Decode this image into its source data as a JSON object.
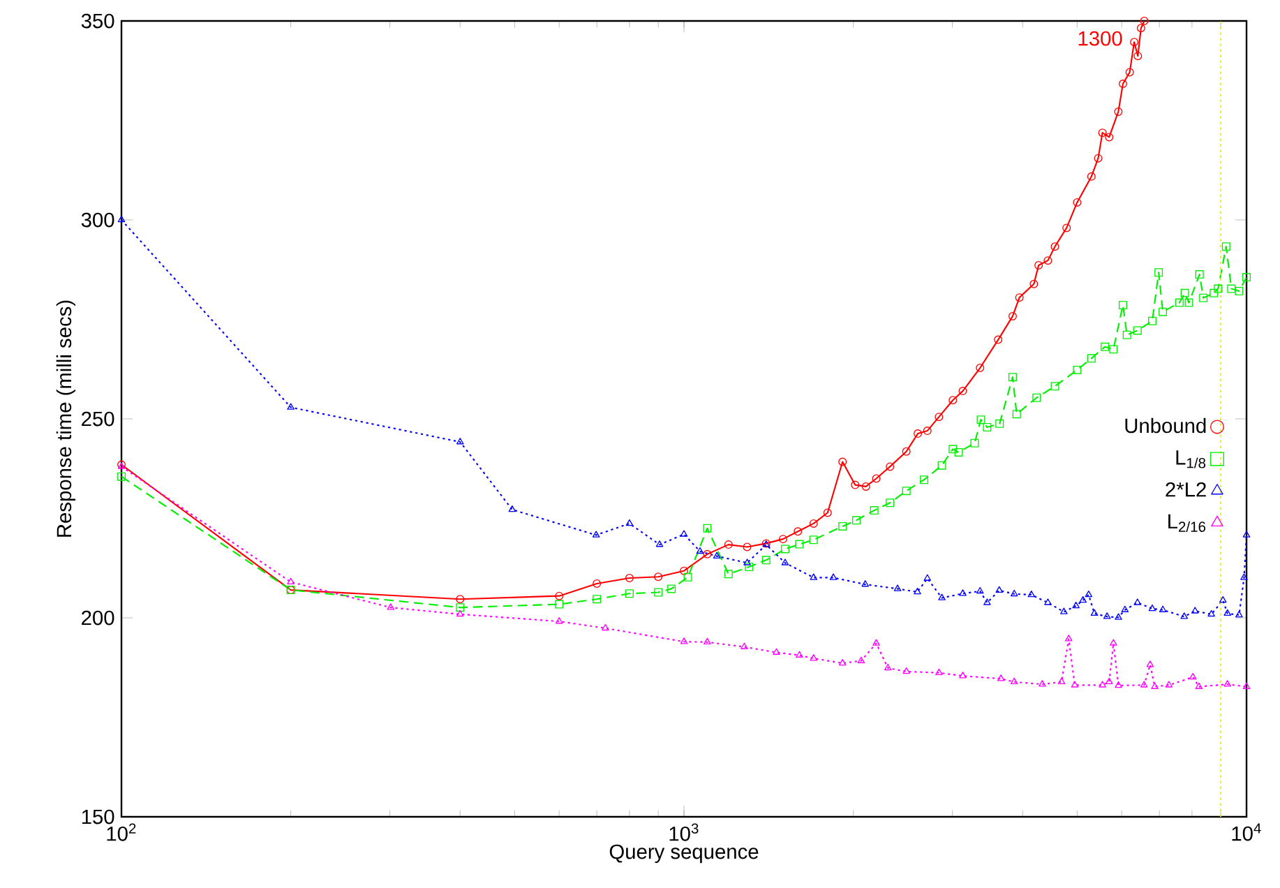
{
  "chart_data": {
    "type": "line",
    "xlabel": "Query sequence",
    "ylabel": "Response time (milli secs)",
    "log": "x",
    "xlim": [
      100,
      10000
    ],
    "ylim": [
      150,
      350
    ],
    "xticks": [
      {
        "value": 100,
        "label": "10$^{2}$"
      },
      {
        "value": 1000,
        "label": "10$^{3}$"
      },
      {
        "value": 10000,
        "label": "10$^{4}$"
      }
    ],
    "yticks": [
      150,
      200,
      250,
      300,
      350
    ],
    "legend": "right",
    "annotations": [
      "1300"
    ],
    "ref_lines": [
      {
        "axis": "x",
        "value": 9000,
        "color": "#e8e830",
        "line_style": "dotted"
      }
    ],
    "series": [
      {
        "name": "Unbound",
        "color": "#ff0000",
        "marker": "circle",
        "line_style": "solid",
        "x": [
          100,
          200,
          400,
          600,
          700,
          800,
          900,
          1000,
          1100,
          1200,
          1295,
          1400,
          1500,
          1594,
          1700,
          1800,
          1914,
          2015,
          2106,
          2197,
          2324,
          2485,
          2604,
          2708,
          2840,
          3006,
          3131,
          3360,
          3619,
          3840,
          3948,
          4188,
          4270,
          4435,
          4565,
          4788,
          5000,
          5300,
          5449,
          5545,
          5700,
          5918,
          6030,
          6200,
          6315,
          6410,
          6494,
          6580
        ],
        "values": [
          238.5,
          207,
          204.7,
          205.5,
          208.6,
          210,
          210.3,
          211.8,
          216,
          218.4,
          217.8,
          218.7,
          219.8,
          221.7,
          223.7,
          226.4,
          239.2,
          233.4,
          233,
          235,
          238,
          241.8,
          246.3,
          247,
          250.5,
          254.7,
          257,
          262.8,
          269.9,
          275.8,
          280.5,
          283.9,
          288.6,
          289.8,
          293.3,
          298,
          304.4,
          310.9,
          315.5,
          321.9,
          320.8,
          327.2,
          334.2,
          337.1,
          344.7,
          341.2,
          348.2,
          350
        ]
      },
      {
        "name": "L$_{1/8}$",
        "color": "#00ee00",
        "marker": "square",
        "line_style": "dashed",
        "x": [
          100,
          200,
          400,
          600,
          700,
          800,
          900,
          950,
          1016,
          1100,
          1200,
          1305,
          1400,
          1513,
          1604,
          1700,
          1914,
          2025,
          2179,
          2324,
          2485,
          2672,
          2874,
          3006,
          3078,
          3286,
          3372,
          3459,
          3640,
          3840,
          3904,
          4235,
          4565,
          5000,
          5300,
          5600,
          5800,
          6030,
          6130,
          6400,
          6800,
          6980,
          7100,
          7600,
          7770,
          7900,
          8250,
          8380,
          8750,
          8900,
          9200,
          9400,
          9700,
          10000
        ],
        "values": [
          235.5,
          207,
          202.6,
          203.4,
          204.7,
          206.1,
          206.4,
          207.3,
          210.2,
          222.5,
          211,
          212.8,
          214.5,
          217.3,
          218.5,
          219.6,
          223,
          224.5,
          227,
          228.9,
          231.9,
          234.7,
          238.3,
          242.4,
          241.6,
          243.9,
          249.8,
          247.9,
          248.8,
          260.5,
          251.2,
          255.3,
          258.2,
          262.3,
          265.2,
          268.1,
          267.5,
          278.6,
          271.1,
          272.2,
          274.6,
          286.8,
          276.9,
          279.2,
          281.6,
          279.2,
          286.3,
          280.4,
          281.6,
          282.7,
          293.3,
          282.7,
          282.1,
          285.6
        ]
      },
      {
        "name": "2*L2",
        "color": "#0000ff",
        "marker": "triangle",
        "line_style": "dotted",
        "x": [
          100,
          200,
          400,
          495,
          698,
          800,
          905,
          1000,
          1068,
          1144,
          1295,
          1400,
          1513,
          1700,
          1843,
          2100,
          2397,
          2600,
          2708,
          2874,
          3131,
          3360,
          3459,
          3635,
          3865,
          4145,
          4435,
          4735,
          4975,
          5120,
          5240,
          5365,
          5650,
          5920,
          6080,
          6400,
          6800,
          7100,
          7750,
          8100,
          8660,
          9080,
          9250,
          9700,
          9900,
          10000
        ],
        "values": [
          300,
          252.9,
          244.2,
          227.2,
          220.8,
          223.7,
          218.4,
          221,
          216.7,
          215.5,
          213.8,
          218.4,
          213.8,
          210.1,
          210.1,
          208.4,
          207.3,
          206.5,
          209.9,
          205,
          206.1,
          206.7,
          203.8,
          206.9,
          206,
          205.8,
          203.8,
          201.5,
          203,
          204.4,
          205.8,
          201.1,
          200.3,
          200.1,
          202,
          203.8,
          202.3,
          202,
          200.3,
          201.7,
          200.9,
          204.4,
          201.1,
          200.7,
          210.1,
          220.8
        ]
      },
      {
        "name": "L$_{2/16}$",
        "color": "#ff00ff",
        "marker": "triangle",
        "line_style": "dotted",
        "x": [
          100,
          200,
          301,
          400,
          600,
          725,
          1000,
          1100,
          1280,
          1460,
          1604,
          1700,
          1914,
          2065,
          2197,
          2304,
          2485,
          2840,
          3131,
          3660,
          3865,
          4335,
          4690,
          4830,
          4950,
          5545,
          5700,
          5800,
          5920,
          6575,
          6740,
          6870,
          7280,
          8030,
          8230,
          9250,
          10000
        ],
        "values": [
          238,
          209,
          202.6,
          200.9,
          199.1,
          197.4,
          194,
          193.9,
          192.7,
          191.3,
          190.6,
          189.8,
          188.6,
          189.2,
          193.6,
          187.4,
          186.5,
          186.2,
          185.4,
          184.7,
          183.9,
          183.3,
          183.9,
          194.7,
          183.1,
          183.1,
          183.9,
          193.6,
          183,
          183.1,
          188.2,
          182.7,
          183.1,
          185.1,
          182.7,
          183.3,
          182.7
        ]
      }
    ]
  }
}
